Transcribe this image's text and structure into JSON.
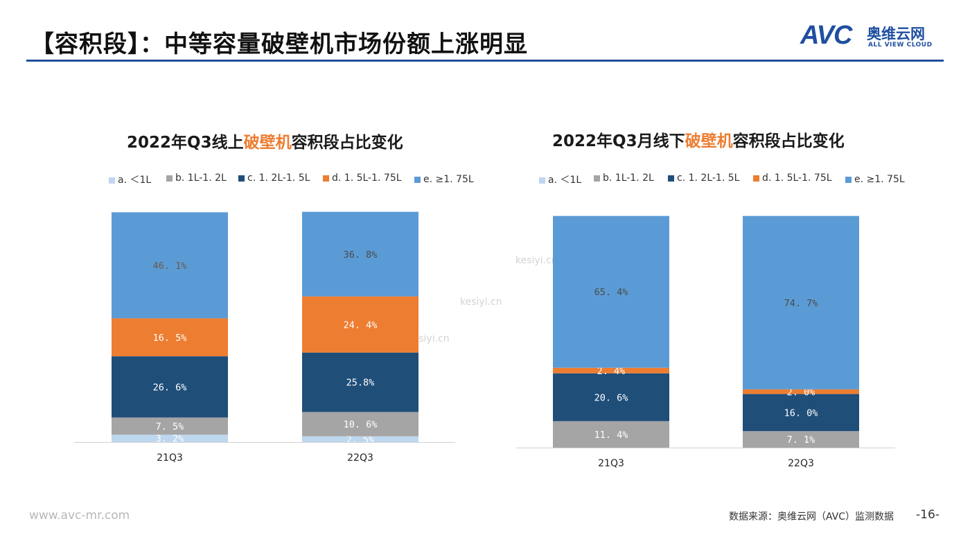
{
  "header": {
    "title": "【容积段】：中等容量破壁机市场份额上涨明显",
    "logo_mark": "AVC",
    "logo_cn": "奥维云网",
    "logo_en": "ALL VIEW CLOUD"
  },
  "colors": {
    "a": "#bdd7ee",
    "b": "#a5a5a5",
    "c": "#1f4e79",
    "d": "#ed7d31",
    "e": "#5b9bd5",
    "rule": "#1f4e9c"
  },
  "legend_labels": [
    "a. ＜1L",
    "b. 1L-1. 2L",
    "c. 1. 2L-1. 5L",
    "d. 1. 5L-1. 75L",
    "e. ≥1. 75L"
  ],
  "chart_data": [
    {
      "type": "bar",
      "stacked": true,
      "title_pre": "2022年Q3线上",
      "title_hl": "破壁机",
      "title_post": "容积段占比变化",
      "categories": [
        "21Q3",
        "22Q3"
      ],
      "series": [
        {
          "name": "a. ＜1L",
          "values": [
            3.2,
            2.5
          ],
          "labels": [
            "3. 2%",
            "2. 5%"
          ]
        },
        {
          "name": "b. 1L-1. 2L",
          "values": [
            7.5,
            10.6
          ],
          "labels": [
            "7. 5%",
            "10. 6%"
          ]
        },
        {
          "name": "c. 1. 2L-1. 5L",
          "values": [
            26.6,
            25.8
          ],
          "labels": [
            "26. 6%",
            "25.8%"
          ]
        },
        {
          "name": "d. 1. 5L-1. 75L",
          "values": [
            16.5,
            24.4
          ],
          "labels": [
            "16. 5%",
            "24. 4%"
          ]
        },
        {
          "name": "e. ≥1. 75L",
          "values": [
            46.1,
            36.8
          ],
          "labels": [
            "46. 1%",
            "36. 8%"
          ]
        }
      ],
      "ylim": [
        0,
        100
      ]
    },
    {
      "type": "bar",
      "stacked": true,
      "title_pre": "2022年Q3月线下",
      "title_hl": "破壁机",
      "title_post": "容积段占比变化",
      "categories": [
        "21Q3",
        "22Q3"
      ],
      "series": [
        {
          "name": "a. ＜1L",
          "values": [
            0.0,
            0.0
          ],
          "labels": [
            "",
            ""
          ]
        },
        {
          "name": "b. 1L-1. 2L",
          "values": [
            11.4,
            7.1
          ],
          "labels": [
            "11. 4%",
            "7. 1%"
          ]
        },
        {
          "name": "c. 1. 2L-1. 5L",
          "values": [
            20.6,
            16.0
          ],
          "labels": [
            "20. 6%",
            "16. 0%"
          ]
        },
        {
          "name": "d. 1. 5L-1. 75L",
          "values": [
            2.4,
            2.0
          ],
          "labels": [
            "2. 4%",
            "2. 0%"
          ]
        },
        {
          "name": "e. ≥1. 75L",
          "values": [
            65.4,
            74.7
          ],
          "labels": [
            "65. 4%",
            "74. 7%"
          ]
        }
      ],
      "ylim": [
        0,
        100
      ]
    }
  ],
  "watermark": "kesiyi.cn",
  "footer": {
    "url": "www.avc-mr.com",
    "source": "数据来源：奥维云网（AVC）监测数据",
    "page": "-16-"
  }
}
